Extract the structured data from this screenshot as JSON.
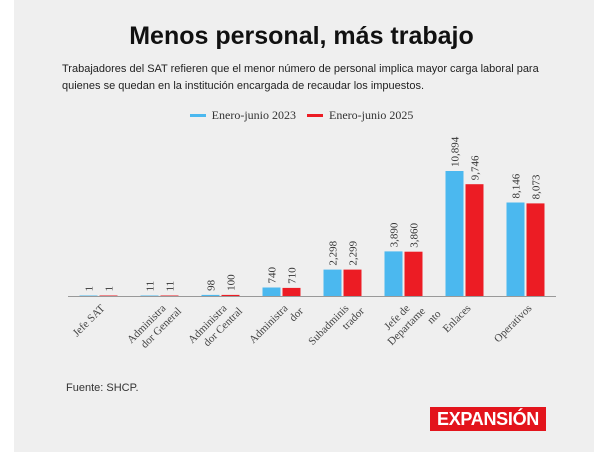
{
  "header": {
    "title": "Menos personal, más trabajo",
    "subtitle": "Trabajadores del SAT refieren que el menor número de personal implica mayor carga laboral para quienes se quedan en la institución encargada de recaudar los impuestos."
  },
  "footer": {
    "source": "Fuente: SHCP.",
    "logo": "EXPANSIÓN"
  },
  "colors": {
    "series_2023": "#4bb8ef",
    "series_2025": "#ec1c24",
    "axis": "#999999",
    "label": "#444444"
  },
  "chart_data": {
    "type": "bar",
    "title": "Menos personal, más trabajo",
    "xlabel": "",
    "ylabel": "",
    "grid": false,
    "legend_position": "top-center",
    "categories": [
      [
        "Jefe SAT"
      ],
      [
        "Administra",
        "dor General"
      ],
      [
        "Administra",
        "dor Central"
      ],
      [
        "Administra",
        "dor"
      ],
      [
        "Subadminis",
        "trador"
      ],
      [
        "Jefe de",
        "Departame",
        "nto"
      ],
      [
        "Enlaces"
      ],
      [
        "Operativos"
      ]
    ],
    "series": [
      {
        "name": "Enero-junio 2023",
        "color": "#4bb8ef",
        "values": [
          1,
          11,
          98,
          740,
          2298,
          3890,
          10894,
          8146
        ]
      },
      {
        "name": "Enero-junio 2025",
        "color": "#ec1c24",
        "values": [
          1,
          11,
          100,
          710,
          2299,
          3860,
          9746,
          8073
        ]
      }
    ],
    "value_labels": [
      [
        "1",
        "11",
        "98",
        "740",
        "2,298",
        "3,890",
        "10,894",
        "8,146"
      ],
      [
        "1",
        "11",
        "100",
        "710",
        "2,299",
        "3,860",
        "9,746",
        "8,073"
      ]
    ],
    "ylim": [
      0,
      10894
    ]
  }
}
